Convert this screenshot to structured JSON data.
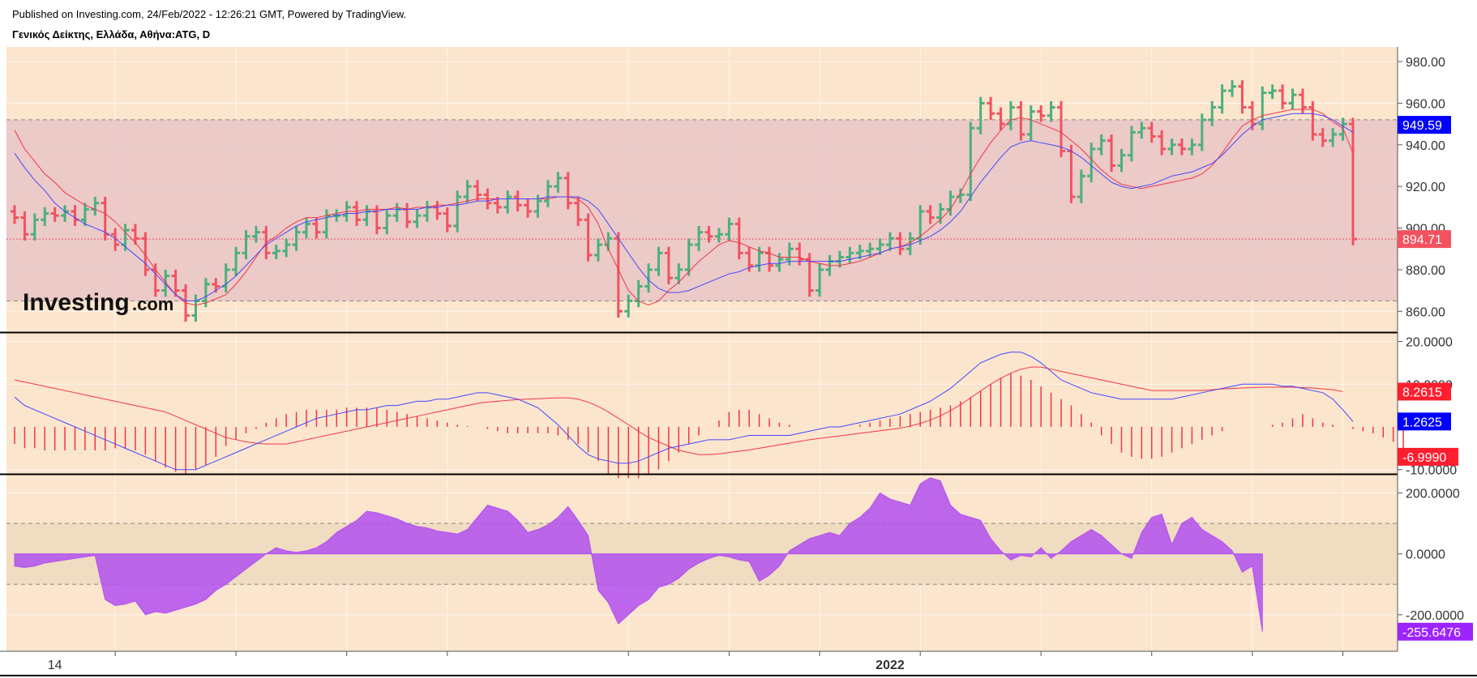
{
  "header": {
    "published": "Published on Investing.com, 24/Feb/2022 - 12:26:21 GMT, Powered by TradingView.",
    "symbol": "Γενικός Δείκτης, Ελλάδα, Αθήνα:ATG, D"
  },
  "logo": {
    "main": "Investing",
    "suffix": ".com"
  },
  "colors": {
    "background": "#fbe5cd",
    "band_fill": "#e9c6c6",
    "cci_band_fill": "#f0dcc0",
    "up": "#4caf7d",
    "down": "#f2525f",
    "ma_red": "#f23645",
    "ma_blue": "#4646ff",
    "cci_fill": "#b150f0",
    "badge_blue": "#0000ff",
    "badge_red": "#ff1e2e",
    "badge_last": "#f2525f",
    "badge_purple": "#9d24ff"
  },
  "chart_data": [
    {
      "type": "ohlc",
      "name": "price",
      "x_labels": [
        {
          "index": 4,
          "label": "14"
        },
        {
          "index": 87,
          "label": "2022"
        }
      ],
      "ylim": [
        850,
        987
      ],
      "y_ticks": [
        "980.00",
        "960.00",
        "940.00",
        "920.00",
        "900.00",
        "880.00",
        "860.00"
      ],
      "y_tick_values": [
        980,
        960,
        940,
        920,
        900,
        880,
        860
      ],
      "band": [
        865,
        952
      ],
      "last_price": 894.71,
      "badges": [
        {
          "value": 949.59,
          "text": "949.59",
          "color": "badge_blue"
        },
        {
          "value": 894.71,
          "text": "894.71",
          "color": "badge_last"
        }
      ],
      "close": [
        905,
        897,
        904,
        907,
        906,
        908,
        904,
        909,
        912,
        897,
        892,
        899,
        895,
        880,
        870,
        877,
        870,
        858,
        865,
        873,
        872,
        880,
        888,
        896,
        898,
        888,
        889,
        892,
        898,
        902,
        898,
        906,
        906,
        910,
        904,
        908,
        900,
        906,
        909,
        903,
        906,
        910,
        907,
        901,
        915,
        920,
        916,
        912,
        910,
        915,
        911,
        908,
        913,
        920,
        924,
        912,
        904,
        887,
        892,
        895,
        860,
        865,
        872,
        880,
        888,
        876,
        880,
        892,
        898,
        896,
        897,
        902,
        888,
        882,
        888,
        882,
        885,
        890,
        885,
        870,
        880,
        884,
        886,
        888,
        889,
        890,
        892,
        895,
        890,
        895,
        908,
        905,
        909,
        915,
        916,
        948,
        960,
        955,
        950,
        958,
        945,
        956,
        954,
        958,
        937,
        915,
        925,
        938,
        942,
        930,
        935,
        946,
        948,
        944,
        938,
        940,
        938,
        940,
        952,
        958,
        966,
        968,
        958,
        950,
        965,
        966,
        960,
        964,
        958,
        945,
        942,
        945,
        950,
        894.71
      ],
      "ma_red": [
        947,
        938,
        932,
        926,
        922,
        917,
        914,
        911,
        909,
        907,
        903,
        898,
        893,
        887,
        880,
        874,
        868,
        864,
        863,
        864,
        866,
        868,
        873,
        879,
        886,
        893,
        896,
        900,
        903,
        905,
        905,
        906,
        907,
        908,
        908,
        909,
        909,
        909,
        910,
        909,
        910,
        910,
        911,
        911,
        912,
        913,
        914,
        914,
        914,
        914,
        914,
        914,
        914,
        914,
        915,
        915,
        914,
        910,
        902,
        890,
        880,
        870,
        865,
        863,
        865,
        870,
        874,
        879,
        884,
        888,
        892,
        894,
        893,
        891,
        889,
        888,
        886,
        886,
        886,
        884,
        883,
        882,
        882,
        883,
        884,
        886,
        888,
        890,
        891,
        893,
        896,
        900,
        904,
        909,
        917,
        926,
        934,
        941,
        947,
        952,
        953,
        952,
        950,
        948,
        946,
        942,
        938,
        933,
        928,
        924,
        921,
        920,
        919,
        920,
        921,
        922,
        923,
        924,
        926,
        930,
        936,
        943,
        949,
        952,
        954,
        955,
        956,
        957,
        957,
        957,
        955,
        951,
        948,
        936
      ],
      "ma_blue": [
        936,
        929,
        923,
        918,
        912,
        908,
        905,
        902,
        900,
        898,
        895,
        891,
        887,
        883,
        878,
        873,
        868,
        865,
        865,
        867,
        870,
        873,
        877,
        882,
        887,
        892,
        895,
        898,
        901,
        903,
        904,
        905,
        906,
        907,
        907,
        908,
        908,
        909,
        909,
        909,
        909,
        910,
        910,
        911,
        911,
        912,
        913,
        913,
        914,
        914,
        914,
        914,
        914,
        915,
        915,
        915,
        915,
        913,
        909,
        902,
        895,
        888,
        881,
        875,
        871,
        869,
        869,
        870,
        872,
        874,
        876,
        878,
        879,
        881,
        882,
        883,
        883,
        884,
        884,
        884,
        884,
        884,
        884,
        885,
        886,
        887,
        888,
        890,
        891,
        892,
        894,
        896,
        899,
        903,
        908,
        915,
        922,
        928,
        934,
        939,
        941,
        942,
        941,
        940,
        939,
        937,
        934,
        930,
        926,
        922,
        920,
        919,
        920,
        921,
        923,
        925,
        926,
        927,
        929,
        931,
        935,
        940,
        945,
        949,
        952,
        953,
        954,
        955,
        955,
        955,
        954,
        952,
        949,
        946
      ]
    },
    {
      "type": "macd",
      "name": "MACD",
      "ylim": [
        -11,
        22
      ],
      "y_ticks": [
        "20.0000",
        "10.0000",
        "-10.0000"
      ],
      "y_tick_values": [
        20,
        10,
        -10
      ],
      "badges": [
        {
          "value": 8.2615,
          "text": "8.2615",
          "color": "badge_red"
        },
        {
          "value": 1.2625,
          "text": "1.2625",
          "color": "badge_blue"
        },
        {
          "value": -6.999,
          "text": "-6.9990",
          "color": "badge_red"
        }
      ],
      "macd": [
        7,
        5,
        4,
        3,
        2,
        1,
        0,
        -1,
        -2,
        -3,
        -4,
        -5,
        -6,
        -7,
        -8,
        -9,
        -10,
        -10,
        -10,
        -9,
        -8,
        -7,
        -6,
        -5,
        -4,
        -3,
        -2,
        -1,
        0,
        1,
        2,
        2.5,
        3,
        3.5,
        4,
        4,
        4.5,
        5,
        5,
        5.5,
        6,
        6,
        6.5,
        6.5,
        7,
        7.5,
        8,
        8,
        7.5,
        7,
        6.5,
        5.5,
        4.5,
        2.5,
        0.5,
        -2,
        -4.5,
        -6.5,
        -7.5,
        -8,
        -8.5,
        -8.5,
        -8,
        -7,
        -6,
        -5,
        -4.5,
        -4,
        -3.5,
        -3,
        -3,
        -3,
        -2.5,
        -2,
        -2,
        -2,
        -2,
        -2,
        -1.5,
        -1,
        -0.5,
        0,
        0,
        0.5,
        1,
        1.5,
        2,
        2.5,
        3,
        4,
        5,
        6,
        7.5,
        9,
        11,
        13,
        15,
        16,
        17,
        17.5,
        17.5,
        16.5,
        15,
        13,
        11,
        10,
        9,
        8,
        7.5,
        7,
        6.5,
        6.5,
        6.5,
        6.5,
        6.5,
        6.5,
        7,
        7.5,
        8,
        8.5,
        9,
        9.5,
        10,
        10,
        10,
        10,
        9.5,
        9.5,
        9,
        8.5,
        8,
        6.5,
        4,
        1.2625
      ],
      "signal": [
        11,
        10.5,
        10,
        9.5,
        9,
        8.5,
        8,
        7.5,
        7,
        6.5,
        6,
        5.5,
        5,
        4.5,
        4,
        3.5,
        2.5,
        1.5,
        0.5,
        -0.5,
        -1.5,
        -2.5,
        -3,
        -3.5,
        -3.8,
        -4,
        -4,
        -4,
        -3.5,
        -3,
        -2.5,
        -2,
        -1.5,
        -1,
        -0.5,
        0,
        0.5,
        1,
        1.5,
        2,
        2.5,
        3,
        3.5,
        4,
        4.5,
        5,
        5.5,
        5.8,
        6,
        6.2,
        6.4,
        6.5,
        6.6,
        6.7,
        6.8,
        6.8,
        6.5,
        5.8,
        4.8,
        3.5,
        2,
        0.5,
        -1,
        -2.5,
        -3.5,
        -4.5,
        -5.5,
        -6,
        -6.5,
        -6.5,
        -6.3,
        -6,
        -5.7,
        -5.4,
        -5,
        -4.6,
        -4.2,
        -3.8,
        -3.4,
        -3,
        -2.7,
        -2.4,
        -2.1,
        -1.8,
        -1.5,
        -1.2,
        -0.9,
        -0.6,
        -0.3,
        0.2,
        0.8,
        1.6,
        2.6,
        3.8,
        5.2,
        6.8,
        8.4,
        10,
        11.4,
        12.6,
        13.5,
        14,
        14,
        13.5,
        13,
        12.5,
        12,
        11.5,
        11,
        10.5,
        10,
        9.5,
        9,
        8.5,
        8.5,
        8.5,
        8.5,
        8.5,
        8.5,
        8.7,
        8.9,
        9,
        9.1,
        9.2,
        9.3,
        9.3,
        9.3,
        9.3,
        9.2,
        9.1,
        8.9,
        8.7,
        8.2615
      ],
      "histogram": [
        -4,
        -5,
        -5,
        -5.5,
        -5.5,
        -5.5,
        -5.5,
        -5.5,
        -5.5,
        -5.5,
        -5,
        -5,
        -5.5,
        -6.5,
        -8,
        -9.5,
        -10.5,
        -11,
        -10,
        -9,
        -7,
        -4.5,
        -3,
        -1.5,
        -0.5,
        1,
        2,
        3,
        3.5,
        4,
        4,
        4,
        4,
        4.5,
        4.5,
        4.5,
        4.5,
        4,
        3.5,
        3,
        2.5,
        2,
        1.5,
        1,
        0.5,
        0.2,
        0,
        -0.5,
        -1,
        -1.5,
        -1.5,
        -1.5,
        -1.5,
        -1.5,
        -2,
        -3,
        -4,
        -6,
        -8,
        -11,
        -12,
        -12,
        -12,
        -11,
        -10,
        -8,
        -6,
        -4,
        -2,
        0,
        1.5,
        3.5,
        4,
        4,
        3,
        2,
        1,
        0.5,
        0,
        0,
        0,
        0,
        0,
        0,
        0.5,
        1,
        1.5,
        2,
        2.5,
        3,
        3.5,
        4,
        4.5,
        5,
        6,
        7,
        8.5,
        10,
        11.5,
        12.5,
        12,
        11,
        9.5,
        8,
        6.5,
        5,
        3,
        1,
        -2,
        -4,
        -6,
        -7,
        -7.5,
        -7.5,
        -7,
        -6,
        -5,
        -4,
        -3,
        -2,
        -1,
        0,
        0,
        0,
        0,
        0.5,
        1,
        2,
        3,
        2,
        1,
        0.5,
        0,
        -0.5,
        -1,
        -1.5,
        -2.5,
        -3.5,
        -6.999
      ]
    },
    {
      "type": "area",
      "name": "CCI",
      "ylim": [
        -320,
        260
      ],
      "y_ticks": [
        "200.0000",
        "0.0000",
        "-200.0000"
      ],
      "y_tick_values": [
        200,
        0,
        -200
      ],
      "band": [
        -100,
        100
      ],
      "badges": [
        {
          "value": -255.6476,
          "text": "-255.6476",
          "color": "badge_purple"
        }
      ],
      "values": [
        -40,
        -45,
        -40,
        -30,
        -25,
        -20,
        -15,
        -10,
        -5,
        -150,
        -170,
        -165,
        -155,
        -200,
        -190,
        -195,
        -185,
        -175,
        -165,
        -150,
        -120,
        -100,
        -75,
        -50,
        -25,
        0,
        20,
        10,
        5,
        10,
        20,
        40,
        70,
        90,
        110,
        140,
        135,
        125,
        115,
        100,
        90,
        85,
        75,
        70,
        65,
        80,
        120,
        160,
        150,
        140,
        110,
        70,
        80,
        95,
        120,
        155,
        110,
        60,
        -120,
        -160,
        -230,
        -200,
        -170,
        -150,
        -110,
        -100,
        -80,
        -50,
        -30,
        -15,
        -5,
        -10,
        -20,
        -25,
        -90,
        -70,
        -40,
        10,
        30,
        50,
        60,
        70,
        60,
        100,
        120,
        150,
        200,
        180,
        170,
        160,
        230,
        250,
        240,
        160,
        130,
        120,
        110,
        50,
        10,
        -20,
        -5,
        -10,
        20,
        -15,
        10,
        40,
        60,
        80,
        60,
        30,
        0,
        -15,
        70,
        120,
        130,
        30,
        100,
        120,
        80,
        60,
        40,
        10,
        -60,
        -40,
        -255.6476
      ]
    }
  ]
}
